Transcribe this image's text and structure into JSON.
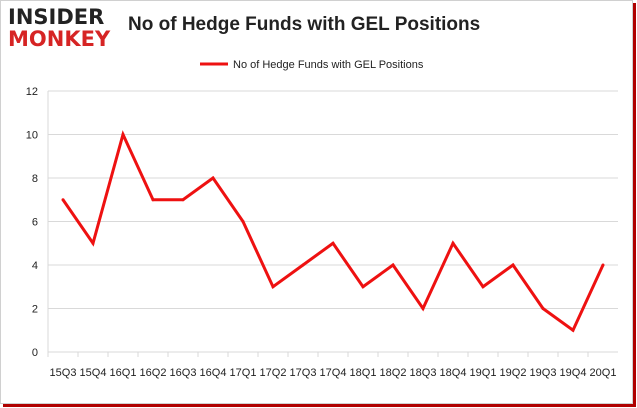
{
  "logo": {
    "line1": "INSIDER",
    "line2": "MONKEY"
  },
  "colors": {
    "series": "#ee1111",
    "grid": "#d9d9d9",
    "brand_red": "#d62424",
    "frame_shadow": "#b00000"
  },
  "chart_data": {
    "type": "line",
    "title": "No of Hedge Funds with GEL Positions",
    "categories": [
      "15Q3",
      "15Q4",
      "16Q1",
      "16Q2",
      "16Q3",
      "16Q4",
      "17Q1",
      "17Q2",
      "17Q3",
      "17Q4",
      "18Q1",
      "18Q2",
      "18Q3",
      "18Q4",
      "19Q1",
      "19Q2",
      "19Q3",
      "19Q4",
      "20Q1"
    ],
    "series": [
      {
        "name": "No of Hedge Funds with GEL Positions",
        "values": [
          7,
          5,
          10,
          7,
          7,
          8,
          6,
          3,
          4,
          5,
          3,
          4,
          2,
          5,
          3,
          4,
          2,
          1,
          4
        ]
      }
    ],
    "y_ticks": [
      "0",
      "2",
      "4",
      "6",
      "8",
      "10",
      "12"
    ],
    "ylim": [
      0,
      12
    ],
    "xlabel": "",
    "ylabel": "",
    "grid": true,
    "legend": "top-center"
  }
}
